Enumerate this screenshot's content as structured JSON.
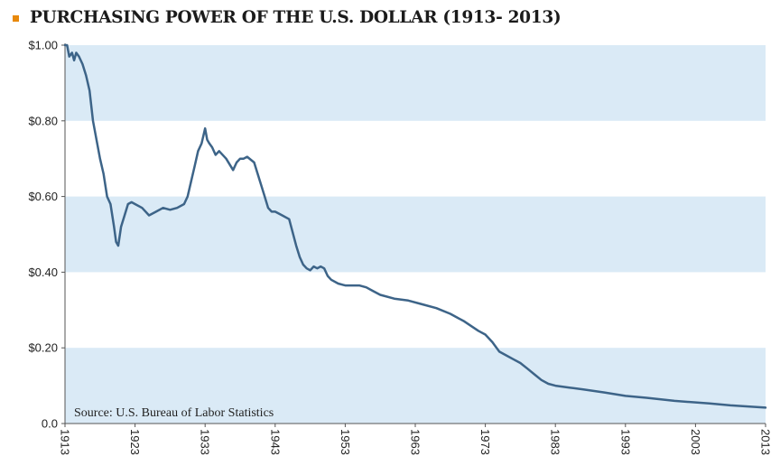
{
  "header": {
    "title": "PURCHASING POWER OF THE U.S. DOLLAR (1913- 2013)"
  },
  "colors": {
    "bullet": "#e8890c",
    "band": "#daeaf6",
    "line": "#3d6488"
  },
  "chart_data": {
    "type": "line",
    "title": "PURCHASING POWER OF THE U.S. DOLLAR (1913- 2013)",
    "xlabel": "",
    "ylabel": "",
    "xlim": [
      1913,
      2013
    ],
    "ylim": [
      0,
      1.0
    ],
    "grid": "alternating horizontal bands",
    "yticks": [
      {
        "value": 0.0,
        "label": "0.0"
      },
      {
        "value": 0.2,
        "label": "$0.20"
      },
      {
        "value": 0.4,
        "label": "$0.40"
      },
      {
        "value": 0.6,
        "label": "$0.60"
      },
      {
        "value": 0.8,
        "label": "$0.80"
      },
      {
        "value": 1.0,
        "label": "$1.00"
      }
    ],
    "xticks": [
      {
        "value": 1913,
        "label": "1913"
      },
      {
        "value": 1923,
        "label": "1923"
      },
      {
        "value": 1933,
        "label": "1933"
      },
      {
        "value": 1943,
        "label": "1943"
      },
      {
        "value": 1953,
        "label": "1953"
      },
      {
        "value": 1963,
        "label": "1963"
      },
      {
        "value": 1973,
        "label": "1973"
      },
      {
        "value": 1983,
        "label": "1983"
      },
      {
        "value": 1993,
        "label": "1993"
      },
      {
        "value": 2003,
        "label": "2003"
      },
      {
        "value": 2013,
        "label": "2013"
      }
    ],
    "annotation": "Source: U.S. Bureau of Labor Statistics",
    "series": [
      {
        "name": "Purchasing power",
        "x": [
          1913,
          1913.3,
          1913.6,
          1914,
          1914.3,
          1914.6,
          1915,
          1915.5,
          1916,
          1916.5,
          1917,
          1917.5,
          1918,
          1918.5,
          1919,
          1919.5,
          1920,
          1920.3,
          1920.6,
          1921,
          1921.5,
          1922,
          1922.5,
          1923,
          1924,
          1925,
          1926,
          1927,
          1928,
          1929,
          1930,
          1930.5,
          1931,
          1931.5,
          1932,
          1932.5,
          1933,
          1933.3,
          1933.6,
          1934,
          1934.5,
          1935,
          1936,
          1937,
          1937.5,
          1938,
          1938.5,
          1939,
          1940,
          1941,
          1941.5,
          1942,
          1942.5,
          1943,
          1944,
          1945,
          1946,
          1946.5,
          1947,
          1947.5,
          1948,
          1948.5,
          1949,
          1949.5,
          1950,
          1950.5,
          1951,
          1952,
          1953,
          1954,
          1955,
          1956,
          1957,
          1958,
          1960,
          1962,
          1964,
          1966,
          1968,
          1970,
          1972,
          1973,
          1974,
          1975,
          1976,
          1977,
          1978,
          1979,
          1980,
          1981,
          1982,
          1983,
          1985,
          1987,
          1990,
          1993,
          1996,
          2000,
          2005,
          2008,
          2013
        ],
        "y": [
          1.0,
          1.0,
          0.97,
          0.98,
          0.96,
          0.98,
          0.97,
          0.95,
          0.92,
          0.88,
          0.8,
          0.75,
          0.7,
          0.66,
          0.6,
          0.58,
          0.52,
          0.48,
          0.47,
          0.52,
          0.55,
          0.58,
          0.585,
          0.58,
          0.57,
          0.55,
          0.56,
          0.57,
          0.565,
          0.57,
          0.58,
          0.6,
          0.64,
          0.68,
          0.72,
          0.74,
          0.78,
          0.75,
          0.74,
          0.73,
          0.71,
          0.72,
          0.7,
          0.67,
          0.69,
          0.7,
          0.7,
          0.705,
          0.69,
          0.63,
          0.6,
          0.57,
          0.56,
          0.56,
          0.55,
          0.54,
          0.47,
          0.44,
          0.42,
          0.41,
          0.405,
          0.415,
          0.41,
          0.415,
          0.41,
          0.39,
          0.38,
          0.37,
          0.365,
          0.365,
          0.365,
          0.36,
          0.35,
          0.34,
          0.33,
          0.325,
          0.315,
          0.305,
          0.29,
          0.27,
          0.245,
          0.235,
          0.215,
          0.19,
          0.18,
          0.17,
          0.16,
          0.145,
          0.13,
          0.115,
          0.105,
          0.1,
          0.095,
          0.09,
          0.082,
          0.073,
          0.068,
          0.06,
          0.053,
          0.048,
          0.042
        ]
      }
    ]
  }
}
